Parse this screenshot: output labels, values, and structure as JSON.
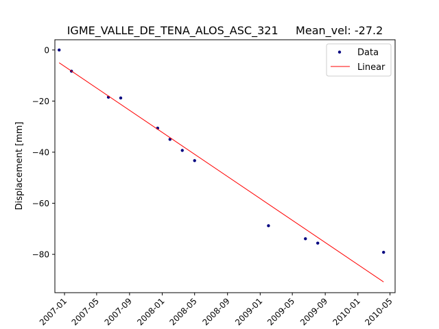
{
  "chart_data": {
    "type": "scatter",
    "title": "IGME_VALLE_DE_TENA_ALOS_ASC_321     Mean_vel: -27.2",
    "xlabel": "",
    "ylabel": "Displacement [mm]",
    "xlim": [
      "2006-11-26",
      "2010-05-20"
    ],
    "ylim": [
      -95,
      4
    ],
    "x_ticks": [
      "2007-01",
      "2007-05",
      "2007-09",
      "2008-01",
      "2008-05",
      "2008-09",
      "2009-01",
      "2009-05",
      "2009-09",
      "2010-01",
      "2010-05"
    ],
    "y_ticks": [
      0,
      -20,
      -40,
      -60,
      -80
    ],
    "grid": false,
    "legend": "top-right",
    "series": [
      {
        "name": "Data",
        "kind": "markers",
        "color": "#000080",
        "points": [
          {
            "x": "2006-12-12",
            "y": 0
          },
          {
            "x": "2007-01-27",
            "y": -8.3
          },
          {
            "x": "2007-06-14",
            "y": -18.5
          },
          {
            "x": "2007-07-30",
            "y": -18.8
          },
          {
            "x": "2007-12-15",
            "y": -30.6
          },
          {
            "x": "2008-01-30",
            "y": -35.0
          },
          {
            "x": "2008-03-16",
            "y": -39.3
          },
          {
            "x": "2008-05-01",
            "y": -43.3
          },
          {
            "x": "2009-02-01",
            "y": -68.8
          },
          {
            "x": "2009-06-19",
            "y": -73.9
          },
          {
            "x": "2009-08-04",
            "y": -75.6
          },
          {
            "x": "2010-04-07",
            "y": -79.2
          }
        ]
      },
      {
        "name": "Linear",
        "kind": "line",
        "color": "#ff0000",
        "points": [
          {
            "x": "2006-12-12",
            "y": -5.0
          },
          {
            "x": "2010-04-07",
            "y": -90.8
          }
        ]
      }
    ]
  }
}
